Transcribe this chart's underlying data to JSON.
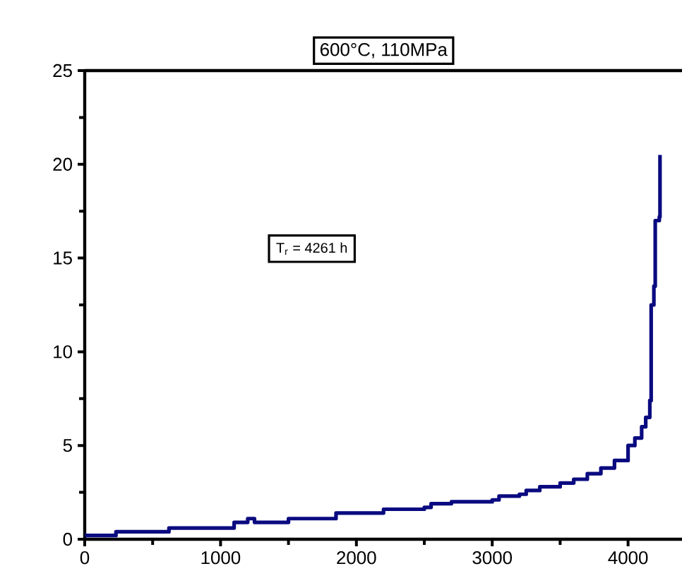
{
  "chart_data": {
    "type": "step",
    "title": "600°C, 110MPa",
    "annotations": [
      "T$_{r}$ = 4261 h"
    ],
    "x": [
      0,
      200,
      230,
      600,
      620,
      1050,
      1100,
      1200,
      1250,
      1450,
      1500,
      1800,
      1850,
      2050,
      2200,
      2500,
      2550,
      2700,
      3000,
      3050,
      3200,
      3250,
      3350,
      3500,
      3600,
      3700,
      3800,
      3900,
      4000,
      4050,
      4100,
      4130,
      4160,
      4170,
      4190,
      4200,
      4230,
      4235
    ],
    "values": [
      0.2,
      0.2,
      0.4,
      0.4,
      0.6,
      0.6,
      0.9,
      1.1,
      0.9,
      0.9,
      1.1,
      1.1,
      1.4,
      1.4,
      1.6,
      1.7,
      1.9,
      2.0,
      2.1,
      2.3,
      2.4,
      2.6,
      2.8,
      3.0,
      3.2,
      3.5,
      3.8,
      4.2,
      5.0,
      5.4,
      6.0,
      6.5,
      7.4,
      12.5,
      13.5,
      17.0,
      17.2,
      20.5
    ],
    "color": "#0a0a80",
    "xlim": [
      0,
      4400
    ],
    "ylim": [
      0,
      25
    ],
    "xticks": [
      0,
      1000,
      2000,
      3000,
      4000
    ],
    "yticks": [
      0,
      5,
      10,
      15,
      20,
      25
    ]
  }
}
